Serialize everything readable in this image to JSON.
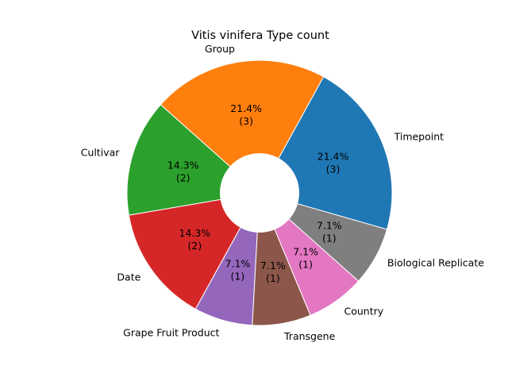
{
  "chart_data": {
    "type": "pie",
    "title": "Vitis vinifera Type count",
    "donut": true,
    "categories": [
      "Timepoint",
      "Group",
      "Cultivar",
      "Date",
      "Grape Fruit Product",
      "Transgene",
      "Country",
      "Biological Replicate"
    ],
    "values": [
      3,
      3,
      2,
      2,
      1,
      1,
      1,
      1
    ],
    "percent_labels": [
      "21.4%",
      "21.4%",
      "14.3%",
      "14.3%",
      "7.1%",
      "7.1%",
      "7.1%",
      "7.1%"
    ],
    "count_labels": [
      "(3)",
      "(3)",
      "(2)",
      "(2)",
      "(1)",
      "(1)",
      "(1)",
      "(1)"
    ],
    "colors": [
      "#1f77b4",
      "#ff7f0e",
      "#2ca02c",
      "#d62728",
      "#9467bd",
      "#8c564b",
      "#e377c2",
      "#7f7f7f"
    ],
    "start_angle_deg": -16,
    "direction": "counterclockwise",
    "legend": "none"
  }
}
